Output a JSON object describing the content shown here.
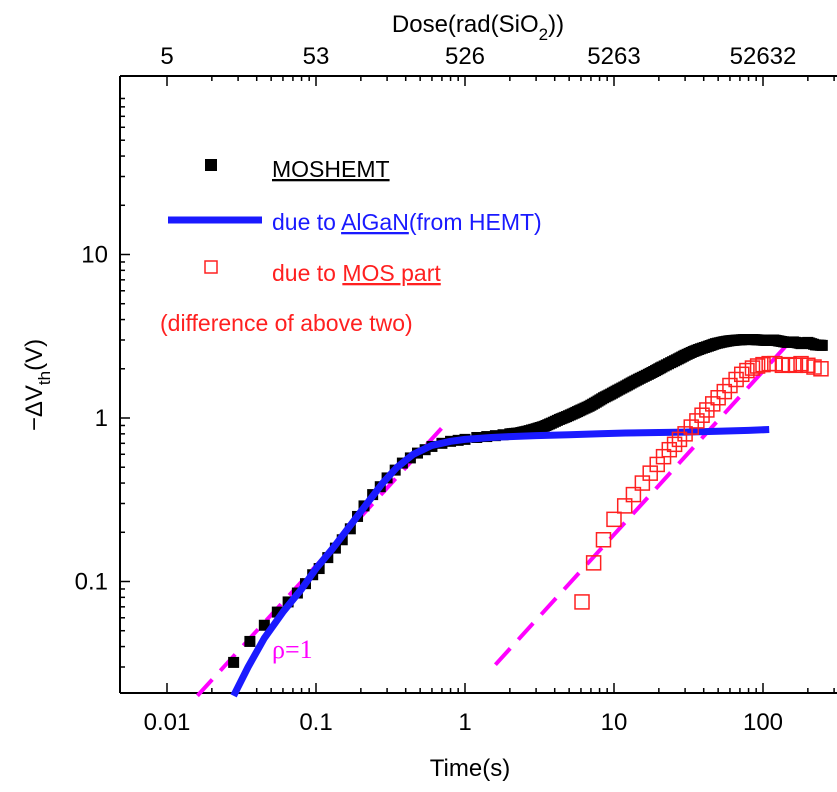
{
  "chart_data": {
    "type": "scatter",
    "xlabel": "Time(s)",
    "ylabel_main": "−ΔV",
    "ylabel_sub": "th",
    "ylabel_unit": "(V)",
    "top_axis_label_main": "Dose(rad(SiO",
    "top_axis_label_sub": "2",
    "top_axis_label_end": "))",
    "x_scale": "log",
    "y_scale": "log",
    "xlim": [
      0.01,
      250
    ],
    "ylim": [
      0.02,
      100
    ],
    "x_ticks": [
      {
        "value": 0.01,
        "label": "0.01"
      },
      {
        "value": 0.1,
        "label": "0.1"
      },
      {
        "value": 1,
        "label": "1"
      },
      {
        "value": 10,
        "label": "10"
      },
      {
        "value": 100,
        "label": "100"
      }
    ],
    "y_ticks": [
      {
        "value": 0.1,
        "label": "0.1"
      },
      {
        "value": 1,
        "label": "1"
      },
      {
        "value": 10,
        "label": "10"
      }
    ],
    "top_ticks": [
      {
        "value": 0.01,
        "label": "5"
      },
      {
        "value": 0.1,
        "label": "53"
      },
      {
        "value": 1,
        "label": "526"
      },
      {
        "value": 10,
        "label": "5263"
      },
      {
        "value": 100,
        "label": "52632"
      }
    ],
    "colors": {
      "moshemt": "#000000",
      "algan": "#1a1aff",
      "mos": "#ff2020",
      "fit": "#ff00ff"
    },
    "legend": {
      "moshemt": "MOSHEMT",
      "algan_prefix": "due to ",
      "algan_underlined": "AlGaN",
      "algan_suffix": "(from HEMT)",
      "mos_prefix": "due to ",
      "mos_underlined": "MOS part",
      "mos_note": "(difference of above two)"
    },
    "annotation": "ρ=1",
    "series": [
      {
        "name": "MOSHEMT",
        "marker": "filled-square",
        "x": [
          0.018,
          0.028,
          0.036,
          0.045,
          0.055,
          0.065,
          0.075,
          0.085,
          0.095,
          0.105,
          0.12,
          0.135,
          0.15,
          0.17,
          0.19,
          0.21,
          0.24,
          0.27,
          0.3,
          0.34,
          0.38,
          0.43,
          0.48,
          0.54,
          0.6,
          0.7,
          0.8,
          0.9,
          1.0,
          1.2,
          1.4,
          1.6,
          1.8,
          2.0,
          2.3,
          2.6,
          3.0,
          3.4,
          3.8,
          4.3,
          4.8,
          5.4,
          6.0,
          6.8,
          7.6,
          8.5,
          9.5,
          10.6,
          12,
          13.4,
          15,
          17,
          19,
          21,
          24,
          27,
          30,
          34,
          38,
          43,
          48,
          54,
          60,
          68,
          76,
          85,
          95,
          106,
          118,
          130,
          145,
          160,
          180,
          200,
          225,
          250
        ],
        "y": [
          0.02,
          0.032,
          0.043,
          0.054,
          0.065,
          0.075,
          0.085,
          0.097,
          0.11,
          0.12,
          0.14,
          0.16,
          0.18,
          0.21,
          0.25,
          0.29,
          0.34,
          0.38,
          0.43,
          0.48,
          0.53,
          0.57,
          0.61,
          0.64,
          0.67,
          0.7,
          0.72,
          0.73,
          0.74,
          0.76,
          0.77,
          0.78,
          0.79,
          0.8,
          0.81,
          0.83,
          0.86,
          0.89,
          0.93,
          0.98,
          1.02,
          1.07,
          1.12,
          1.18,
          1.25,
          1.33,
          1.4,
          1.48,
          1.57,
          1.66,
          1.75,
          1.85,
          1.95,
          2.05,
          2.18,
          2.3,
          2.42,
          2.55,
          2.65,
          2.75,
          2.85,
          2.92,
          2.97,
          3.0,
          3.02,
          3.02,
          3.0,
          2.98,
          3.0,
          2.95,
          2.9,
          2.92,
          2.85,
          2.9,
          2.8,
          2.78
        ]
      },
      {
        "name": "due to AlGaN(from HEMT)",
        "marker": "line",
        "x": [
          0.028,
          0.035,
          0.045,
          0.06,
          0.08,
          0.1,
          0.13,
          0.17,
          0.22,
          0.28,
          0.35,
          0.45,
          0.6,
          0.8,
          1.0,
          1.5,
          2.0,
          3.0,
          5.0,
          8.0,
          12,
          20,
          30,
          50,
          80,
          110
        ],
        "y": [
          0.02,
          0.03,
          0.045,
          0.065,
          0.09,
          0.12,
          0.16,
          0.22,
          0.3,
          0.4,
          0.5,
          0.6,
          0.68,
          0.72,
          0.74,
          0.76,
          0.77,
          0.78,
          0.79,
          0.8,
          0.81,
          0.815,
          0.82,
          0.83,
          0.84,
          0.85
        ]
      },
      {
        "name": "due to MOS part",
        "marker": "open-square",
        "x": [
          6.1,
          7.3,
          8.5,
          10.0,
          11.8,
          13.5,
          15.5,
          17.5,
          19.5,
          21.5,
          23.5,
          25.5,
          27.5,
          30,
          33,
          36,
          39,
          42,
          46,
          50,
          55,
          60,
          66,
          72,
          78,
          85,
          92,
          100,
          110,
          120,
          135,
          150,
          165,
          180,
          200,
          220,
          245
        ],
        "y": [
          0.075,
          0.13,
          0.18,
          0.24,
          0.29,
          0.34,
          0.4,
          0.46,
          0.52,
          0.58,
          0.64,
          0.69,
          0.74,
          0.8,
          0.88,
          0.96,
          1.04,
          1.12,
          1.22,
          1.33,
          1.45,
          1.58,
          1.72,
          1.85,
          1.95,
          2.02,
          2.08,
          2.12,
          2.15,
          2.15,
          2.1,
          2.12,
          2.1,
          2.15,
          2.1,
          2.05,
          2.0
        ]
      },
      {
        "name": "ρ=1 fit",
        "marker": "dashed",
        "segments": [
          {
            "x": [
              0.016,
              0.7
            ],
            "y": [
              0.02,
              0.87
            ]
          },
          {
            "x": [
              1.6,
              150
            ],
            "y": [
              0.031,
              2.9
            ]
          }
        ]
      }
    ]
  }
}
